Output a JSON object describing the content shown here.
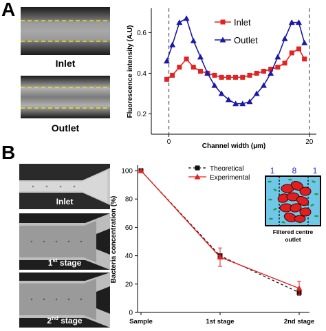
{
  "panel_a": {
    "letter": "A",
    "images": [
      {
        "label": "Inlet"
      },
      {
        "label": "Outlet"
      }
    ]
  },
  "panel_b": {
    "letter": "B",
    "images": [
      {
        "label": "Inlet"
      },
      {
        "label_main": "1",
        "label_sup": "st",
        "label_rest": " stage"
      },
      {
        "label_main": "2",
        "label_sup": "nd",
        "label_rest": " stage"
      }
    ],
    "inset": {
      "numbers": [
        "1",
        "8",
        "1"
      ],
      "caption_line1": "Filtered centre",
      "caption_line2": "outlet",
      "colors": {
        "background": "#70c8e8",
        "cells": "#e02020",
        "bacteria": "#2a9a4a"
      }
    }
  },
  "chart_data": [
    {
      "type": "line",
      "xlabel": "Channel width (µm)",
      "ylabel": "Fluorescence intensity (A.U)",
      "xlim": [
        -2.5,
        21
      ],
      "ylim": [
        0.1,
        0.72
      ],
      "xticks": [
        0,
        20
      ],
      "yticks": [
        0.2,
        0.4,
        0.6
      ],
      "ytick_labels": [
        "0.2",
        "0.4",
        "0.6"
      ],
      "xtick_labels": [
        "0",
        "20"
      ],
      "reference_lines_x": [
        0,
        20
      ],
      "legend_position": "top-center",
      "x": [
        -0.3,
        0.5,
        1.5,
        2.5,
        3.5,
        4.5,
        5.5,
        6.5,
        7.5,
        8.5,
        9.5,
        10.5,
        11.5,
        12.5,
        13.5,
        14.5,
        15.5,
        16.5,
        17.5,
        18.5,
        19.3
      ],
      "series": [
        {
          "name": "Inlet",
          "color": "#e32222",
          "marker": "square",
          "values": [
            0.37,
            0.39,
            0.43,
            0.47,
            0.43,
            0.41,
            0.4,
            0.39,
            0.38,
            0.38,
            0.38,
            0.38,
            0.39,
            0.4,
            0.41,
            0.42,
            0.43,
            0.45,
            0.5,
            0.52,
            0.47
          ]
        },
        {
          "name": "Outlet",
          "color": "#1a1aa6",
          "marker": "triangle",
          "values": [
            0.46,
            0.54,
            0.65,
            0.67,
            0.56,
            0.48,
            0.4,
            0.34,
            0.3,
            0.27,
            0.25,
            0.25,
            0.26,
            0.3,
            0.34,
            0.4,
            0.48,
            0.57,
            0.65,
            0.65,
            0.55
          ]
        }
      ]
    },
    {
      "type": "line",
      "ylabel": "Bacteria concentration (%)",
      "categories": [
        "Sample",
        "1st stage",
        "2nd stage"
      ],
      "ylim": [
        0,
        100
      ],
      "yticks": [
        0,
        20,
        40,
        60,
        80,
        100
      ],
      "legend_position": "top-right",
      "series": [
        {
          "name": "Theoretical",
          "color": "#111111",
          "marker": "square",
          "dash": true,
          "values": [
            100,
            40,
            14
          ],
          "errors": [
            0,
            0,
            0
          ]
        },
        {
          "name": "Experimental",
          "color": "#e32222",
          "marker": "triangle",
          "dash": false,
          "values": [
            100,
            39,
            17
          ],
          "errors": [
            0,
            6.5,
            5
          ]
        }
      ]
    }
  ]
}
